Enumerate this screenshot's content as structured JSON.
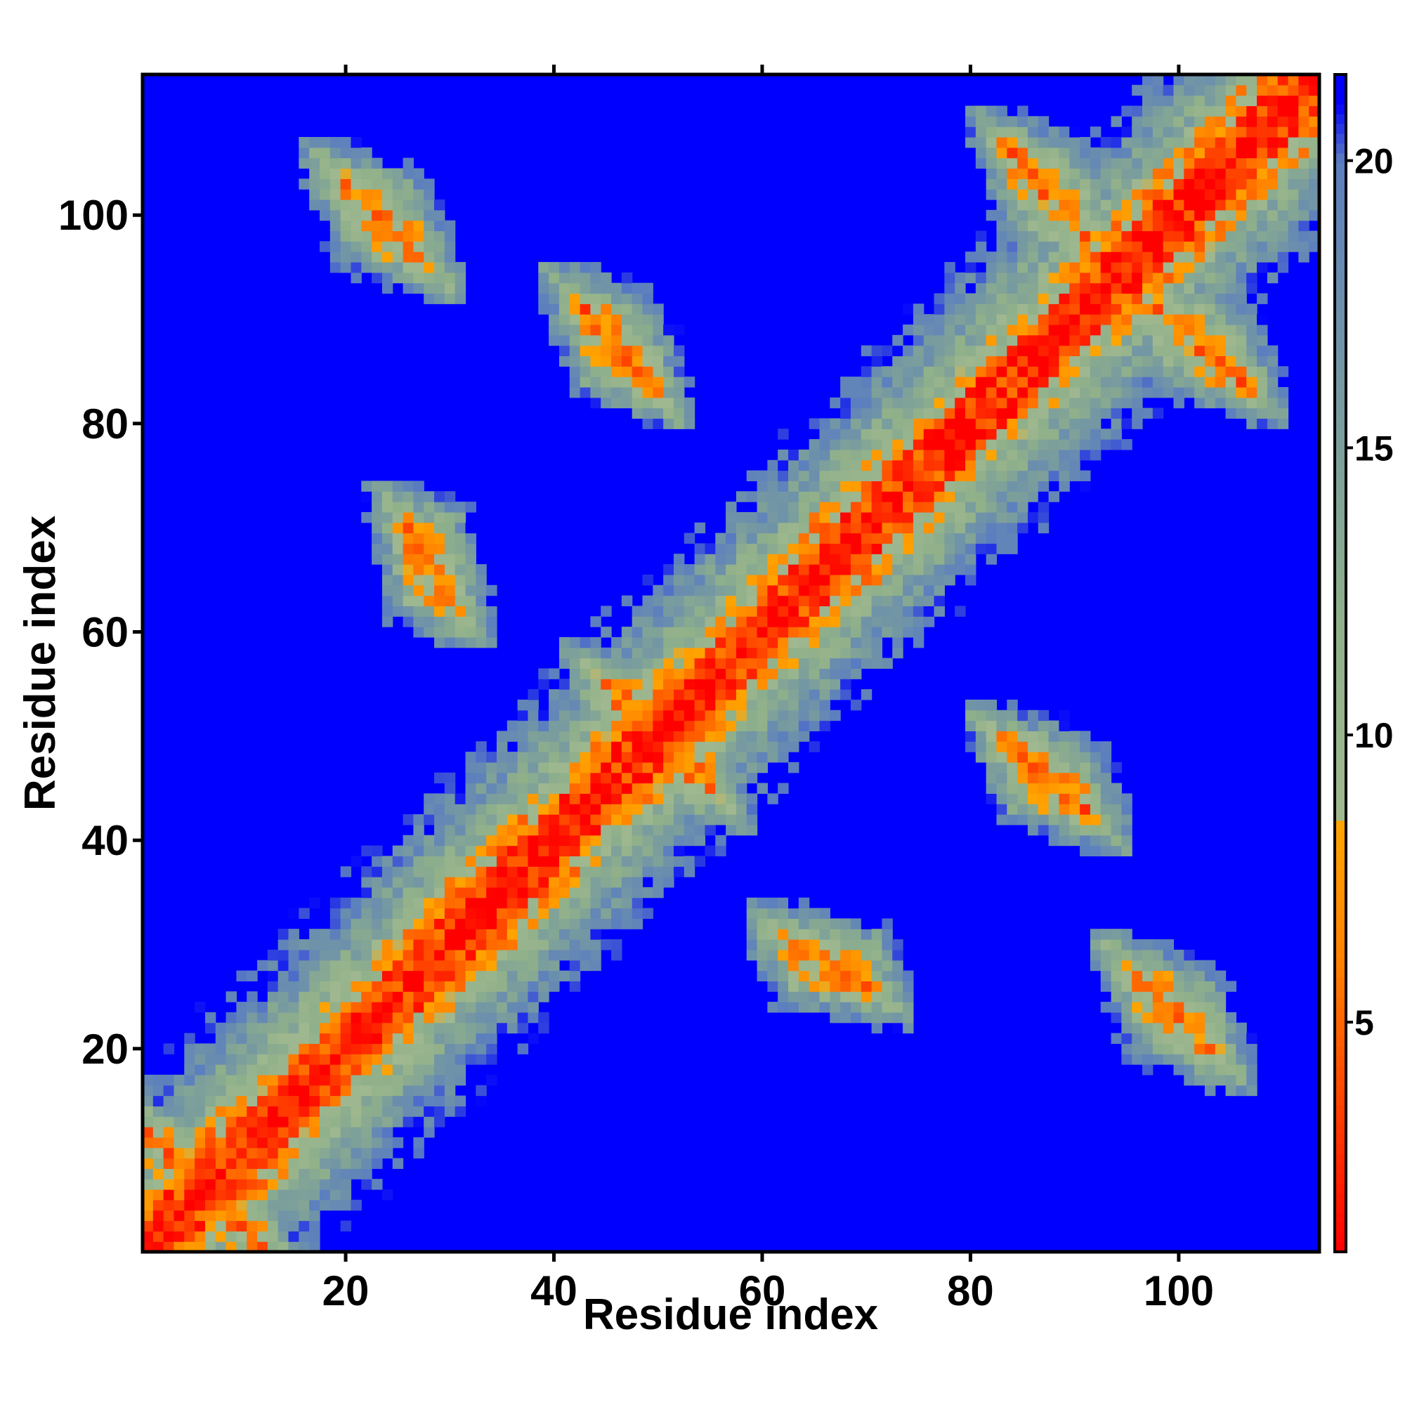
{
  "chart_data": {
    "type": "heatmap",
    "title": "",
    "xlabel": "Residue index",
    "ylabel": "Residue index",
    "n_residues": 113,
    "xlim": [
      1,
      113
    ],
    "ylim": [
      1,
      113
    ],
    "x_ticks": [
      20,
      40,
      60,
      80,
      100
    ],
    "y_ticks": [
      20,
      40,
      60,
      80,
      100
    ],
    "colorbar": {
      "ticks": [
        5,
        10,
        15,
        20
      ],
      "range": [
        1,
        21.5
      ],
      "position": "right",
      "stops": [
        {
          "value": 1,
          "color": "#ff0000"
        },
        {
          "value": 6,
          "color": "#ff7f00"
        },
        {
          "value": 8.5,
          "color": "#ffa500"
        },
        {
          "value": 8.6,
          "color": "#a0b890"
        },
        {
          "value": 12,
          "color": "#8fb08a"
        },
        {
          "value": 17,
          "color": "#6f93a8"
        },
        {
          "value": 20,
          "color": "#5b7ec0"
        },
        {
          "value": 21,
          "color": "#0000ff"
        }
      ]
    },
    "cap_color": "#0000ff",
    "structure": {
      "helix_segments": [
        [
          1,
          16
        ],
        [
          24,
          42
        ],
        [
          44,
          56
        ],
        [
          62,
          76
        ],
        [
          90,
          113
        ]
      ],
      "antiparallel_pairs": [
        {
          "i": [
            20,
            27
          ],
          "j": [
            96,
            103
          ]
        },
        {
          "i": [
            43,
            49
          ],
          "j": [
            84,
            91
          ]
        },
        {
          "i": [
            84,
            91
          ],
          "j": [
            98,
            106
          ]
        },
        {
          "i": [
            101,
            108
          ],
          "j": [
            14,
            21
          ]
        },
        {
          "i": [
            85,
            92
          ],
          "j": [
            41,
            48
          ]
        },
        {
          "i": [
            45,
            51
          ],
          "j": [
            49,
            55
          ]
        },
        {
          "i": [
            26,
            30
          ],
          "j": [
            63,
            70
          ]
        },
        {
          "i": [
            65,
            69
          ],
          "j": [
            24,
            28
          ]
        },
        {
          "i": [
            7,
            12
          ],
          "j": [
            1,
            7
          ]
        },
        {
          "i": [
            1,
            6
          ],
          "j": [
            7,
            12
          ]
        }
      ],
      "noise_seed": 7
    }
  }
}
